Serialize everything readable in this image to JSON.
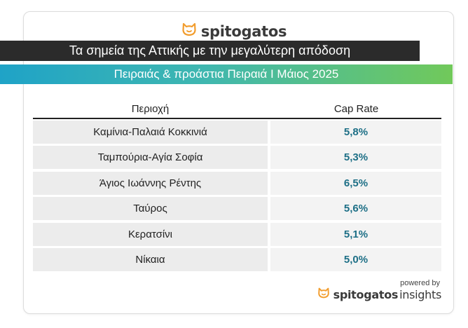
{
  "brand": {
    "name": "spitogatos",
    "icon": "cat-head-icon",
    "accent": "#f29d2e"
  },
  "title": "Τα σημεία της Αττικής με την μεγαλύτερη απόδοση",
  "subtitle": "Πειραιάς & προάστια Πειραιά I Μάιος 2025",
  "table": {
    "headers": {
      "area": "Περιοχή",
      "rate": "Cap Rate"
    },
    "rows": [
      {
        "area": "Καμίνια-Παλαιά Κοκκινιά",
        "rate": "5,8%"
      },
      {
        "area": "Ταμπούρια-Αγία Σοφία",
        "rate": "5,3%"
      },
      {
        "area": "Άγιος Ιωάννης Ρέντης",
        "rate": "6,5%"
      },
      {
        "area": "Ταύρος",
        "rate": "5,6%"
      },
      {
        "area": "Κερατσίνι",
        "rate": "5,1%"
      },
      {
        "area": "Νίκαια",
        "rate": "5,0%"
      }
    ]
  },
  "footer": {
    "powered_by": "powered by",
    "brand_main": "spitogatos",
    "brand_sub": "insights"
  },
  "colors": {
    "title_bg": "#2b2b2b",
    "gradient_start": "#1fa3c7",
    "gradient_end": "#71c95a",
    "rate_text": "#1d6f86"
  }
}
